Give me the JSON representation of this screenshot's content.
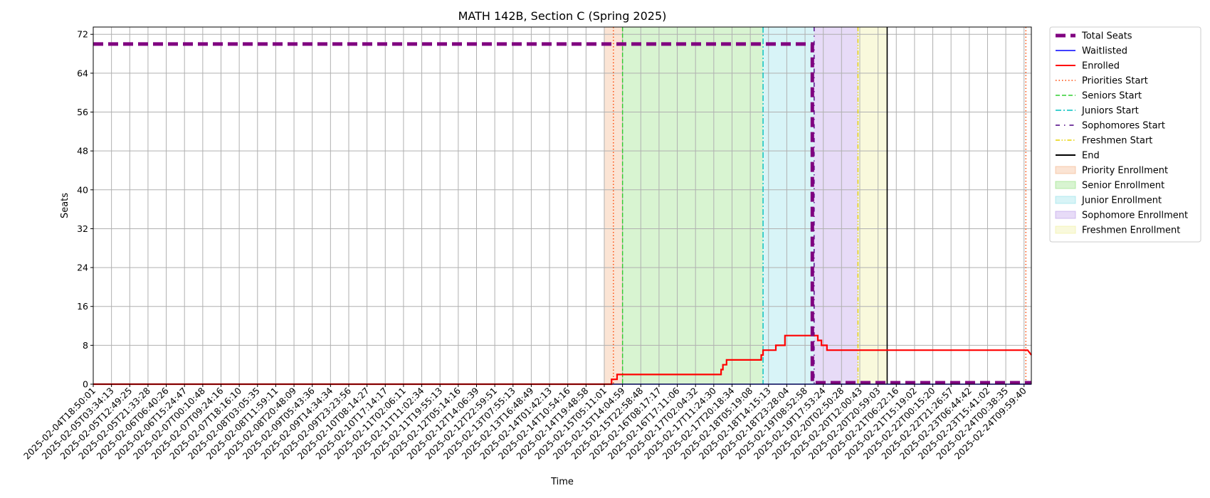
{
  "chart_data": {
    "type": "line",
    "title": "MATH 142B, Section C (Spring 2025)",
    "xlabel": "Time",
    "ylabel": "Seats",
    "ylim": [
      0,
      73.5
    ],
    "yticks": [
      0,
      8,
      16,
      24,
      32,
      40,
      48,
      56,
      64,
      72
    ],
    "grid": true,
    "legend_position": "outside-right",
    "x_ticks": [
      "2025-02-04T18:50:01",
      "2025-02-05T03:34:13",
      "2025-02-05T12:49:25",
      "2025-02-05T21:33:28",
      "2025-02-06T06:40:26",
      "2025-02-06T15:24:47",
      "2025-02-07T00:10:48",
      "2025-02-07T09:24:16",
      "2025-02-07T18:16:10",
      "2025-02-08T03:05:35",
      "2025-02-08T11:59:11",
      "2025-02-08T20:48:09",
      "2025-02-09T05:43:36",
      "2025-02-09T14:34:34",
      "2025-02-09T23:23:56",
      "2025-02-10T08:14:27",
      "2025-02-10T17:14:17",
      "2025-02-11T02:06:11",
      "2025-02-11T11:02:34",
      "2025-02-11T19:55:13",
      "2025-02-12T05:14:16",
      "2025-02-12T14:06:39",
      "2025-02-12T22:59:51",
      "2025-02-13T07:55:13",
      "2025-02-13T16:48:49",
      "2025-02-14T01:42:13",
      "2025-02-14T10:54:16",
      "2025-02-14T19:48:58",
      "2025-02-15T05:11:01",
      "2025-02-15T14:04:59",
      "2025-02-15T22:58:48",
      "2025-02-16T08:17:17",
      "2025-02-16T17:11:06",
      "2025-02-17T02:04:32",
      "2025-02-17T11:24:30",
      "2025-02-17T20:18:34",
      "2025-02-18T05:19:08",
      "2025-02-18T14:15:13",
      "2025-02-18T23:28:04",
      "2025-02-19T08:52:58",
      "2025-02-19T17:53:24",
      "2025-02-20T02:50:28",
      "2025-02-20T12:00:43",
      "2025-02-20T20:59:03",
      "2025-02-21T06:22:16",
      "2025-02-21T15:19:02",
      "2025-02-22T00:15:20",
      "2025-02-22T21:26:57",
      "2025-02-23T06:44:42",
      "2025-02-23T15:41:02",
      "2025-02-24T00:38:35",
      "2025-02-24T09:59:40"
    ],
    "x_max_index": 51.4,
    "series": [
      {
        "name": "Total Seats",
        "color": "#800080",
        "style": "thick-dashed",
        "points": [
          [
            0,
            70
          ],
          [
            39.4,
            70
          ],
          [
            39.4,
            0.3
          ],
          [
            51.4,
            0.3
          ]
        ]
      },
      {
        "name": "Waitlisted",
        "color": "#0000ff",
        "style": "solid",
        "points": [
          [
            0,
            0
          ],
          [
            51.4,
            0
          ]
        ]
      },
      {
        "name": "Enrolled",
        "color": "#ff0000",
        "style": "solid",
        "points": [
          [
            0,
            0
          ],
          [
            28.4,
            0
          ],
          [
            28.4,
            1
          ],
          [
            28.7,
            1
          ],
          [
            28.7,
            2
          ],
          [
            34.4,
            2
          ],
          [
            34.4,
            3
          ],
          [
            34.5,
            3
          ],
          [
            34.5,
            4
          ],
          [
            34.7,
            4
          ],
          [
            34.7,
            5
          ],
          [
            36.6,
            5
          ],
          [
            36.6,
            6
          ],
          [
            36.7,
            6
          ],
          [
            36.7,
            7
          ],
          [
            37.4,
            7
          ],
          [
            37.4,
            8
          ],
          [
            37.9,
            8
          ],
          [
            37.9,
            10
          ],
          [
            39.7,
            10
          ],
          [
            39.7,
            9
          ],
          [
            39.9,
            9
          ],
          [
            39.9,
            8
          ],
          [
            40.2,
            8
          ],
          [
            40.2,
            7
          ],
          [
            51.2,
            7
          ],
          [
            51.4,
            6
          ]
        ]
      }
    ],
    "phase_lines": [
      {
        "name": "Priorities Start",
        "x": 28.5,
        "color": "#ff4500",
        "style": "dotted"
      },
      {
        "name": "Seniors Start",
        "x": 29.0,
        "color": "#32cd32",
        "style": "dashed"
      },
      {
        "name": "Juniors Start",
        "x": 36.7,
        "color": "#00bfbf",
        "style": "dashdot"
      },
      {
        "name": "Sophomores Start",
        "x": 39.5,
        "color": "#4b0082",
        "style": "loose-dashdot"
      },
      {
        "name": "Freshmen Start",
        "x": 41.9,
        "color": "#e6d200",
        "style": "dashdotdot"
      },
      {
        "name": "End",
        "x": 43.5,
        "color": "#000000",
        "style": "solid"
      }
    ],
    "extra_dotted_line": {
      "x": 51.1,
      "color": "#ff4500"
    },
    "phase_regions": [
      {
        "name": "Priority Enrollment",
        "x0": 28.0,
        "x1": 29.0,
        "fill": "#f4b183"
      },
      {
        "name": "Senior Enrollment",
        "x0": 29.0,
        "x1": 36.7,
        "fill": "#90e07a"
      },
      {
        "name": "Junior Enrollment",
        "x0": 36.7,
        "x1": 39.5,
        "fill": "#8ee0e8"
      },
      {
        "name": "Sophomore Enrollment",
        "x0": 39.5,
        "x1": 41.9,
        "fill": "#b999e8"
      },
      {
        "name": "Freshmen Enrollment",
        "x0": 41.9,
        "x1": 43.5,
        "fill": "#eeee9a"
      }
    ],
    "legend": [
      "Total Seats",
      "Waitlisted",
      "Enrolled",
      "Priorities Start",
      "Seniors Start",
      "Juniors Start",
      "Sophomores Start",
      "Freshmen Start",
      "End",
      "Priority Enrollment",
      "Senior Enrollment",
      "Junior Enrollment",
      "Sophomore Enrollment",
      "Freshmen Enrollment"
    ]
  }
}
